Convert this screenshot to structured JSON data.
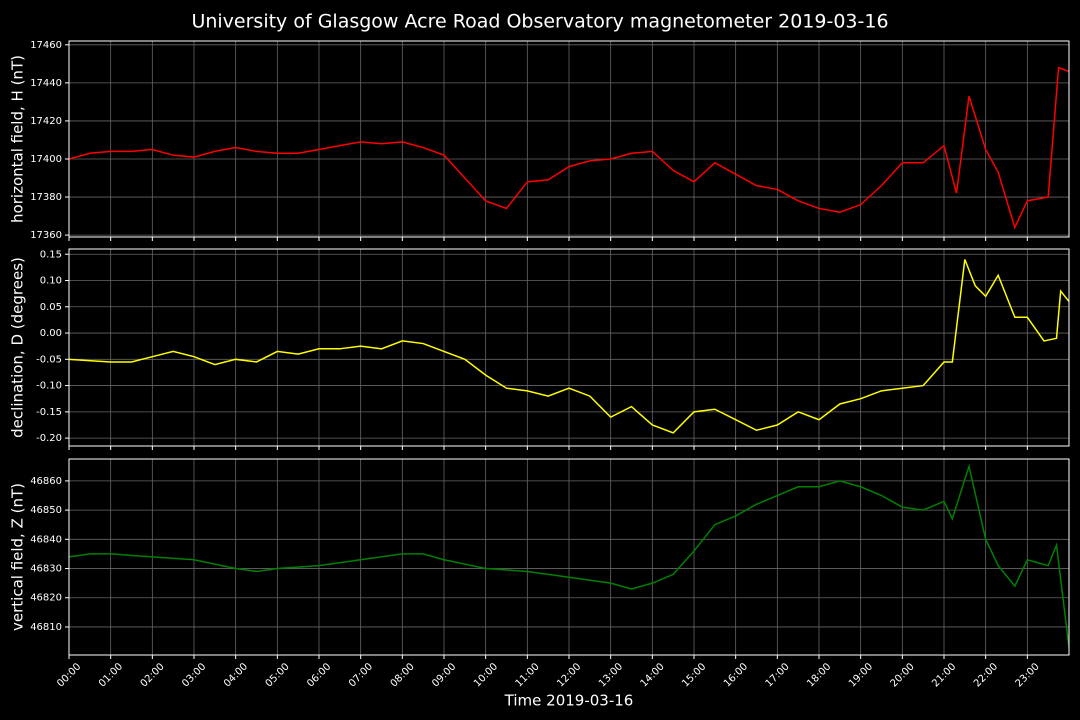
{
  "title": "University of Glasgow Acre Road Observatory magnetometer 2019-03-16",
  "chart_data": [
    {
      "type": "line",
      "ylabel": "horizontal field, H (nT)",
      "xlim": [
        0,
        24
      ],
      "ylim": [
        17359,
        17462
      ],
      "yticks": [
        17360,
        17380,
        17400,
        17420,
        17440,
        17460
      ],
      "grid": true,
      "series": [
        {
          "color": "#ff0000",
          "x": [
            0,
            0.5,
            1,
            1.5,
            2,
            2.5,
            3,
            3.5,
            4,
            4.5,
            5,
            5.5,
            6,
            6.5,
            7,
            7.5,
            8,
            8.5,
            9,
            9.5,
            10,
            10.5,
            11,
            11.5,
            12,
            12.5,
            13,
            13.5,
            14,
            14.5,
            15,
            15.5,
            16,
            16.5,
            17,
            17.5,
            18,
            18.5,
            19,
            19.5,
            20,
            20.5,
            21,
            21.3,
            21.6,
            22,
            22.3,
            22.7,
            23,
            23.5,
            23.75,
            24
          ],
          "values": [
            17400,
            17403,
            17404,
            17404,
            17405,
            17402,
            17401,
            17404,
            17406,
            17404,
            17403,
            17403,
            17405,
            17407,
            17409,
            17408,
            17409,
            17406,
            17402,
            17390,
            17378,
            17374,
            17388,
            17389,
            17396,
            17399,
            17400,
            17403,
            17404,
            17394,
            17388,
            17398,
            17392,
            17386,
            17384,
            17378,
            17374,
            17372,
            17376,
            17386,
            17398,
            17398,
            17407,
            17382,
            17433,
            17405,
            17393,
            17364,
            17378,
            17380,
            17448,
            17446
          ]
        }
      ]
    },
    {
      "type": "line",
      "ylabel": "declination, D (degrees)",
      "xlim": [
        0,
        24
      ],
      "ylim": [
        -0.215,
        0.16
      ],
      "yticks": [
        {
          "value": -0.2,
          "label": "-0.20"
        },
        -0.15,
        {
          "value": -0.1,
          "label": "-0.10"
        },
        -0.05,
        {
          "value": 0,
          "label": "0.00"
        },
        0.05,
        {
          "value": 0.1,
          "label": "0.10"
        },
        0.15
      ],
      "grid": true,
      "series": [
        {
          "color": "#ffff00",
          "x": [
            0,
            1,
            1.5,
            2,
            2.5,
            3,
            3.5,
            4,
            4.5,
            5,
            5.5,
            6,
            6.5,
            7,
            7.5,
            8,
            8.5,
            9,
            9.5,
            10,
            10.5,
            11,
            11.5,
            12,
            12.5,
            13,
            13.5,
            14,
            14.5,
            15,
            15.5,
            16,
            16.5,
            17,
            17.5,
            18,
            18.5,
            19,
            19.5,
            20,
            20.5,
            21,
            21.2,
            21.5,
            21.75,
            22,
            22.3,
            22.7,
            23,
            23.4,
            23.7,
            23.8,
            24
          ],
          "values": [
            -0.05,
            -0.055,
            -0.055,
            -0.045,
            -0.035,
            -0.045,
            -0.06,
            -0.05,
            -0.055,
            -0.035,
            -0.04,
            -0.03,
            -0.03,
            -0.025,
            -0.03,
            -0.015,
            -0.02,
            -0.035,
            -0.05,
            -0.08,
            -0.105,
            -0.11,
            -0.12,
            -0.105,
            -0.12,
            -0.16,
            -0.14,
            -0.175,
            -0.19,
            -0.15,
            -0.145,
            -0.165,
            -0.185,
            -0.175,
            -0.15,
            -0.165,
            -0.135,
            -0.125,
            -0.11,
            -0.105,
            -0.1,
            -0.055,
            -0.055,
            0.14,
            0.09,
            0.07,
            0.11,
            0.03,
            0.03,
            -0.015,
            -0.01,
            0.08,
            0.06
          ]
        }
      ]
    },
    {
      "type": "line",
      "ylabel": "vertical field, Z (nT)",
      "xlabel": "Time 2019-03-16",
      "xlim": [
        0,
        24
      ],
      "ylim": [
        46800.4,
        46867.5
      ],
      "yticks": [
        46810,
        46820,
        46830,
        46840,
        46850,
        46860
      ],
      "grid": true,
      "xticks": [
        {
          "value": 0,
          "label": "00:00"
        },
        {
          "value": 1,
          "label": "01:00"
        },
        {
          "value": 2,
          "label": "02:00"
        },
        {
          "value": 3,
          "label": "03:00"
        },
        {
          "value": 4,
          "label": "04:00"
        },
        {
          "value": 5,
          "label": "05:00"
        },
        {
          "value": 6,
          "label": "06:00"
        },
        {
          "value": 7,
          "label": "07:00"
        },
        {
          "value": 8,
          "label": "08:00"
        },
        {
          "value": 9,
          "label": "09:00"
        },
        {
          "value": 10,
          "label": "10:00"
        },
        {
          "value": 11,
          "label": "11:00"
        },
        {
          "value": 12,
          "label": "12:00"
        },
        {
          "value": 13,
          "label": "13:00"
        },
        {
          "value": 14,
          "label": "14:00"
        },
        {
          "value": 15,
          "label": "15:00"
        },
        {
          "value": 16,
          "label": "16:00"
        },
        {
          "value": 17,
          "label": "17:00"
        },
        {
          "value": 18,
          "label": "18:00"
        },
        {
          "value": 19,
          "label": "19:00"
        },
        {
          "value": 20,
          "label": "20:00"
        },
        {
          "value": 21,
          "label": "21:00"
        },
        {
          "value": 22,
          "label": "22:00"
        },
        {
          "value": 23,
          "label": "23:00"
        }
      ],
      "series": [
        {
          "color": "#008000",
          "x": [
            0,
            0.5,
            1,
            2,
            3,
            4,
            4.5,
            5,
            6,
            7,
            8,
            8.5,
            9,
            10,
            11,
            12,
            13,
            13.5,
            14,
            14.5,
            15,
            15.5,
            16,
            16.5,
            17,
            17.5,
            18,
            18.5,
            19,
            19.5,
            20,
            20.5,
            21,
            21.2,
            21.6,
            22,
            22.3,
            22.7,
            23,
            23.5,
            23.7,
            24
          ],
          "values": [
            46834,
            46835,
            46835,
            46834,
            46833,
            46830,
            46829,
            46830,
            46831,
            46833,
            46835,
            46835,
            46833,
            46830,
            46829,
            46827,
            46825,
            46823,
            46825,
            46828,
            46836,
            46845,
            46848,
            46852,
            46855,
            46858,
            46858,
            46860,
            46858,
            46855,
            46851,
            46850,
            46853,
            46847,
            46865,
            46840,
            46831,
            46824,
            46833,
            46831,
            46838,
            46803
          ]
        }
      ]
    }
  ]
}
